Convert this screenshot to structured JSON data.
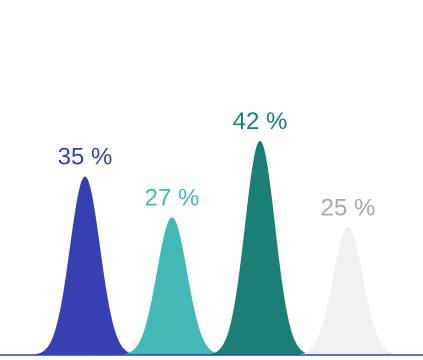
{
  "chart_data": {
    "type": "area",
    "categories": [
      "",
      "",
      "",
      ""
    ],
    "series": [
      {
        "value": 35,
        "label": "35 %",
        "color": "#3740b0",
        "label_color": "#3740b0"
      },
      {
        "value": 27,
        "label": "27 %",
        "color": "#43b9b5",
        "label_color": "#43b9b5"
      },
      {
        "value": 42,
        "label": "42 %",
        "color": "#1c7f75",
        "label_color": "#1c7f75"
      },
      {
        "value": 25,
        "label": "25 %",
        "color": "#f0f0f0",
        "label_color": "#a8a8a8"
      }
    ],
    "ylim": [
      0,
      50
    ],
    "title": "",
    "xlabel": "",
    "ylabel": "",
    "grid": false,
    "axis_color": "#3740b0"
  }
}
